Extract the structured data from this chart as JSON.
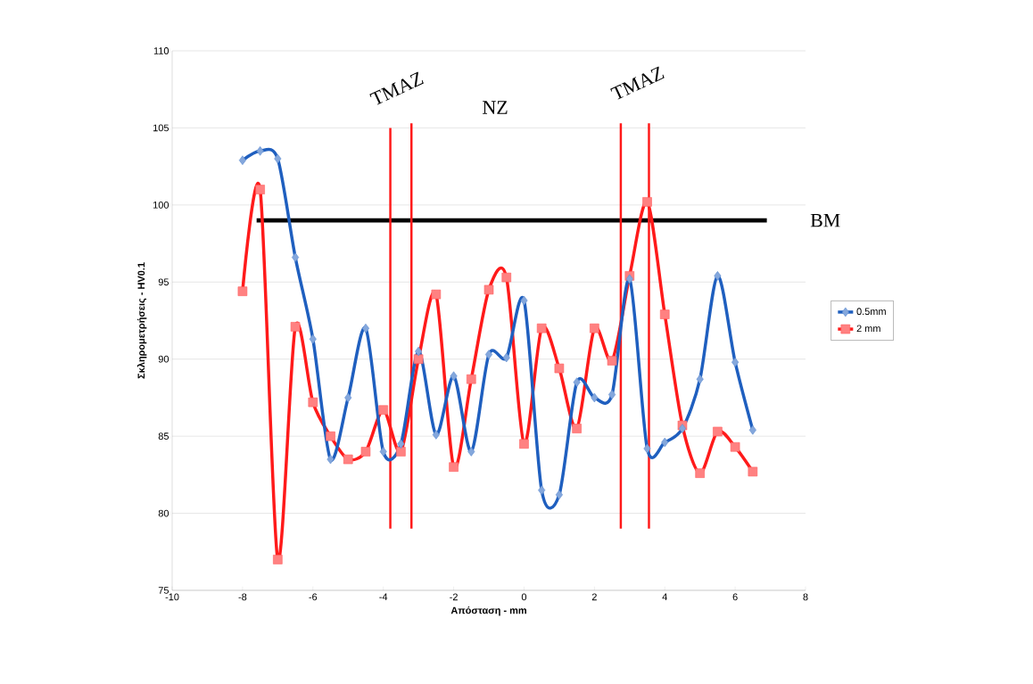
{
  "chart_data": {
    "type": "line",
    "xlabel": "Απόσταση - mm",
    "ylabel": "Σκληρομετρήσεις - HV0.1",
    "x": [
      -8,
      -7.5,
      -7,
      -6.5,
      -6,
      -5.5,
      -5,
      -4.5,
      -4,
      -3.5,
      -3,
      -2.5,
      -2,
      -1.5,
      -1,
      -0.5,
      0,
      0.5,
      1,
      1.5,
      2,
      2.5,
      3,
      3.5,
      4,
      4.5,
      5,
      5.5,
      6,
      6.5
    ],
    "series": [
      {
        "name": "0.5mm",
        "color": "#1f5fbf",
        "marker": "diamond",
        "values": [
          102.9,
          103.5,
          103.0,
          96.6,
          91.3,
          83.5,
          87.5,
          92.0,
          84.0,
          84.5,
          90.5,
          85.1,
          88.9,
          84.0,
          90.3,
          90.1,
          93.8,
          81.5,
          81.2,
          88.5,
          87.5,
          87.7,
          95.2,
          84.2,
          84.6,
          85.5,
          88.7,
          95.4,
          89.8,
          85.4
        ]
      },
      {
        "name": "2 mm",
        "color": "#ff1a1a",
        "marker": "square",
        "values": [
          94.4,
          101.0,
          77.0,
          92.1,
          87.2,
          85.0,
          83.5,
          84.0,
          86.7,
          84.0,
          90.0,
          94.2,
          83.0,
          88.7,
          94.5,
          95.3,
          84.5,
          92.0,
          89.4,
          85.5,
          92.0,
          89.9,
          95.4,
          100.2,
          92.9,
          85.7,
          82.6,
          85.3,
          84.3,
          82.7
        ]
      },
      {
        "name": "BM",
        "color": "#000000",
        "marker": "none",
        "x": [
          -7.6,
          6.9
        ],
        "values": [
          99,
          99
        ]
      },
      {
        "color": "#ff1a1a",
        "marker": "none",
        "x": [
          -3.8,
          -3.8
        ],
        "values": [
          79,
          105
        ]
      },
      {
        "color": "#ff1a1a",
        "marker": "none",
        "x": [
          -3.2,
          -3.2
        ],
        "values": [
          79,
          105.3
        ]
      },
      {
        "color": "#ff1a1a",
        "marker": "none",
        "x": [
          2.75,
          2.75
        ],
        "values": [
          79,
          105.3
        ]
      },
      {
        "color": "#ff1a1a",
        "marker": "none",
        "x": [
          3.55,
          3.55
        ],
        "values": [
          79,
          105.3
        ]
      }
    ],
    "annotations": [
      "TMAZ",
      "NZ",
      "TMAZ"
    ],
    "xlim": [
      -10,
      8
    ],
    "xticks": [
      -10,
      -8,
      -6,
      -4,
      -2,
      0,
      2,
      4,
      6,
      8
    ],
    "ylim": [
      75,
      110
    ],
    "yticks": [
      75,
      80,
      85,
      90,
      95,
      100,
      105,
      110
    ],
    "grid": "y",
    "legend": "right"
  }
}
